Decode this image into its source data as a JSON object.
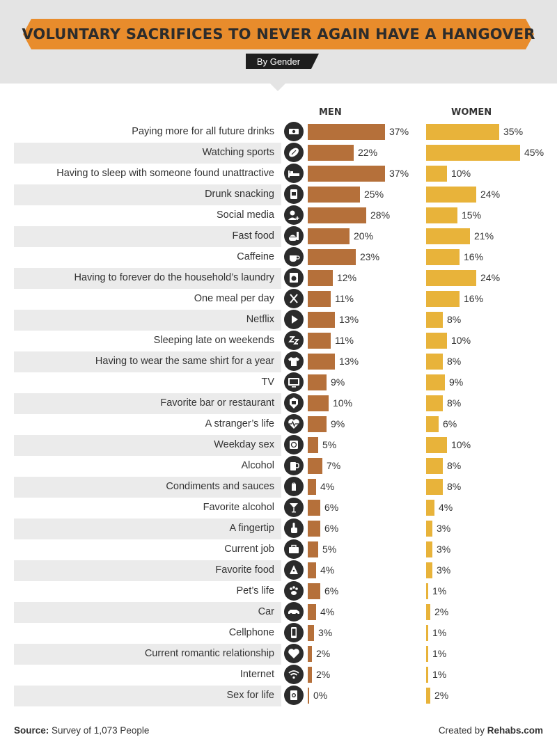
{
  "chart_data": {
    "type": "bar",
    "orientation": "horizontal",
    "title": "VOLUNTARY SACRIFICES TO NEVER AGAIN HAVE A HANGOVER",
    "subtitle": "By Gender",
    "value_suffix": "%",
    "xlim": [
      0,
      45
    ],
    "categories": [
      "Paying more for all future drinks",
      "Watching sports",
      "Having to sleep with someone found unattractive",
      "Drunk snacking",
      "Social media",
      "Fast food",
      "Caffeine",
      "Having to forever do the household’s laundry",
      "One meal per day",
      "Netflix",
      "Sleeping late on weekends",
      "Having to wear the same shirt for a year",
      "TV",
      "Favorite bar or restaurant",
      "A stranger’s life",
      "Weekday sex",
      "Alcohol",
      "Condiments and sauces",
      "Favorite alcohol",
      "A fingertip",
      "Current job",
      "Favorite food",
      "Pet’s life",
      "Car",
      "Cellphone",
      "Current romantic relationship",
      "Internet",
      "Sex for life"
    ],
    "icons": [
      "money-icon",
      "football-icon",
      "bed-icon",
      "snack-icon",
      "add-user-icon",
      "fast-food-icon",
      "coffee-icon",
      "washing-machine-icon",
      "fork-knife-icon",
      "play-icon",
      "sleep-icon",
      "tshirt-icon",
      "tv-icon",
      "restaurant-sign-icon",
      "heartbeat-icon",
      "condom-icon",
      "beer-mug-icon",
      "salt-shaker-icon",
      "cocktail-icon",
      "pointing-finger-icon",
      "briefcase-icon",
      "pizza-icon",
      "paw-icon",
      "car-icon",
      "cellphone-icon",
      "heart-icon",
      "wifi-icon",
      "condom-box-icon"
    ],
    "series": [
      {
        "name": "MEN",
        "color": "#b5703a",
        "values": [
          37,
          22,
          37,
          25,
          28,
          20,
          23,
          12,
          11,
          13,
          11,
          13,
          9,
          10,
          9,
          5,
          7,
          4,
          6,
          6,
          5,
          4,
          6,
          4,
          3,
          2,
          2,
          0
        ]
      },
      {
        "name": "WOMEN",
        "color": "#e8b33a",
        "values": [
          35,
          45,
          10,
          24,
          15,
          21,
          16,
          24,
          16,
          8,
          10,
          8,
          9,
          8,
          6,
          10,
          8,
          8,
          4,
          3,
          3,
          3,
          1,
          2,
          1,
          1,
          1,
          2
        ]
      }
    ]
  },
  "footer": {
    "source_label": "Source:",
    "source_text": "Survey of 1,073 People",
    "credit_text": "Created by",
    "credit_brand": "Rehabs.com"
  },
  "colors": {
    "title_banner": "#e88c2c",
    "header_band": "#e4e4e4",
    "row_stripe": "#ebebeb",
    "icon_circle": "#2b2b2b"
  }
}
